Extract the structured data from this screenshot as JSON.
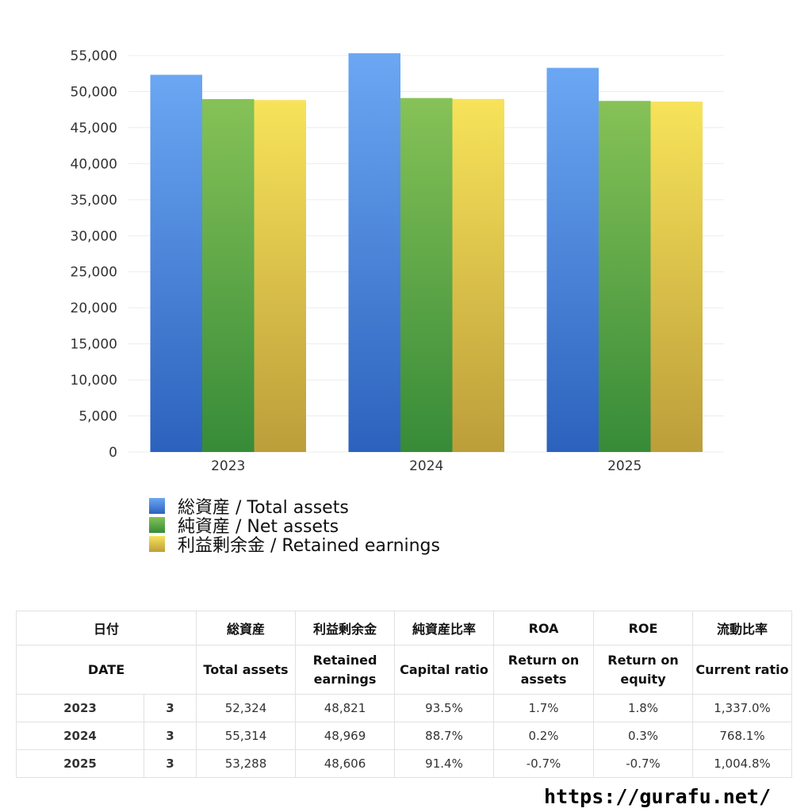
{
  "chart_data": {
    "type": "bar",
    "categories": [
      "2023",
      "2024",
      "2025"
    ],
    "series": [
      {
        "name": "総資産 / Total assets",
        "values": [
          52324,
          55314,
          53288
        ],
        "color": "#4a86dc"
      },
      {
        "name": "純資産 / Net assets",
        "values": [
          48950,
          49100,
          48700
        ],
        "color": "#56a648"
      },
      {
        "name": "利益剰余金 / Retained earnings",
        "values": [
          48821,
          48969,
          48606
        ],
        "color": "#e8cc47"
      }
    ],
    "y_ticks": [
      "0",
      "5,000",
      "10,000",
      "15,000",
      "20,000",
      "25,000",
      "30,000",
      "35,000",
      "40,000",
      "45,000",
      "50,000",
      "55,000"
    ],
    "ylim": [
      0,
      55000
    ],
    "grid": true,
    "legend_position": "bottom-left"
  },
  "table": {
    "header_jp": [
      "日付",
      "総資産",
      "利益剰余金",
      "純資産比率",
      "ROA",
      "ROE",
      "流動比率"
    ],
    "header_en": [
      "DATE",
      "Total assets",
      "Retained earnings",
      "Capital ratio",
      "Return on assets",
      "Return on equity",
      "Current ratio"
    ],
    "rows": [
      {
        "year": "2023",
        "month": "3",
        "total_assets": "52,324",
        "retained": "48,821",
        "capital_ratio": "93.5%",
        "roa": "1.7%",
        "roe": "1.8%",
        "current_ratio": "1,337.0%"
      },
      {
        "year": "2024",
        "month": "3",
        "total_assets": "55,314",
        "retained": "48,969",
        "capital_ratio": "88.7%",
        "roa": "0.2%",
        "roe": "0.3%",
        "current_ratio": "768.1%"
      },
      {
        "year": "2025",
        "month": "3",
        "total_assets": "53,288",
        "retained": "48,606",
        "capital_ratio": "91.4%",
        "roa": "-0.7%",
        "roe": "-0.7%",
        "current_ratio": "1,004.8%"
      }
    ],
    "negative_color": "#e0402a"
  },
  "site_url": "https://gurafu.net/"
}
